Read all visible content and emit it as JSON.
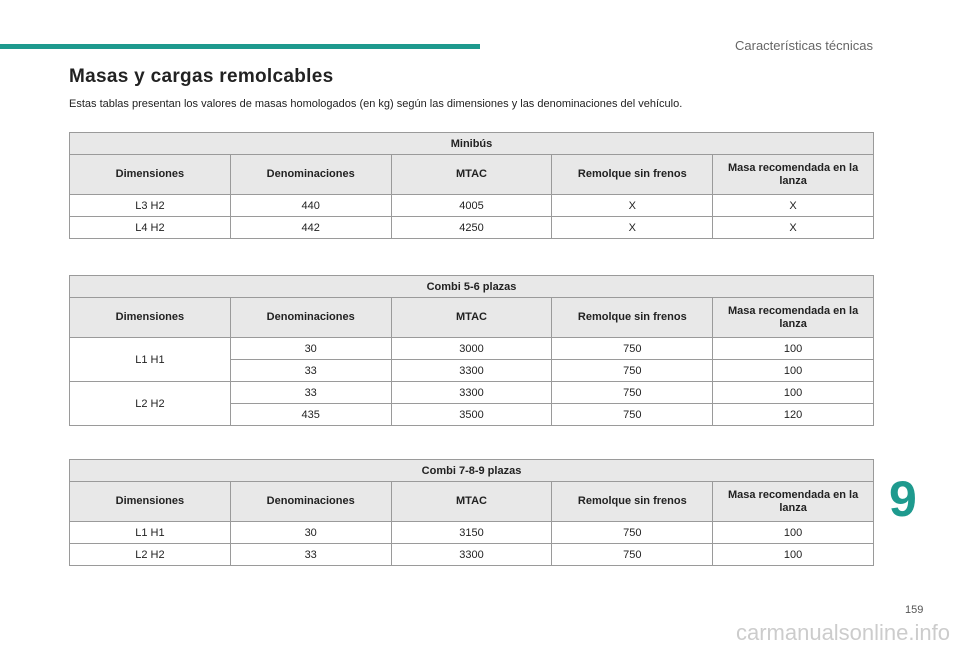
{
  "header": {
    "section": "Características técnicas"
  },
  "title": "Masas y cargas remolcables",
  "intro": "Estas tablas presentan los valores de masas homologados (en kg) según las dimensiones y las denominaciones del vehículo.",
  "tables": [
    {
      "title": "Minibús",
      "headers": [
        "Dimensiones",
        "Denominaciones",
        "MTAC",
        "Remolque sin frenos",
        "Masa recomendada en la lanza"
      ],
      "groups": [
        {
          "dimension": "L3 H2",
          "rows": [
            [
              "440",
              "4005",
              "X",
              "X"
            ]
          ]
        },
        {
          "dimension": "L4 H2",
          "rows": [
            [
              "442",
              "4250",
              "X",
              "X"
            ]
          ]
        }
      ]
    },
    {
      "title": "Combi 5-6 plazas",
      "headers": [
        "Dimensiones",
        "Denominaciones",
        "MTAC",
        "Remolque sin frenos",
        "Masa recomendada en la lanza"
      ],
      "groups": [
        {
          "dimension": "L1 H1",
          "rows": [
            [
              "30",
              "3000",
              "750",
              "100"
            ],
            [
              "33",
              "3300",
              "750",
              "100"
            ]
          ]
        },
        {
          "dimension": "L2 H2",
          "rows": [
            [
              "33",
              "3300",
              "750",
              "100"
            ],
            [
              "435",
              "3500",
              "750",
              "120"
            ]
          ]
        }
      ]
    },
    {
      "title": "Combi 7-8-9 plazas",
      "headers": [
        "Dimensiones",
        "Denominaciones",
        "MTAC",
        "Remolque sin frenos",
        "Masa recomendada en la lanza"
      ],
      "groups": [
        {
          "dimension": "L1 H1",
          "rows": [
            [
              "30",
              "3150",
              "750",
              "100"
            ]
          ]
        },
        {
          "dimension": "L2 H2",
          "rows": [
            [
              "33",
              "3300",
              "750",
              "100"
            ]
          ]
        }
      ]
    }
  ],
  "chapter": "9",
  "page_number": "159",
  "watermark": "carmanualsonline.info"
}
